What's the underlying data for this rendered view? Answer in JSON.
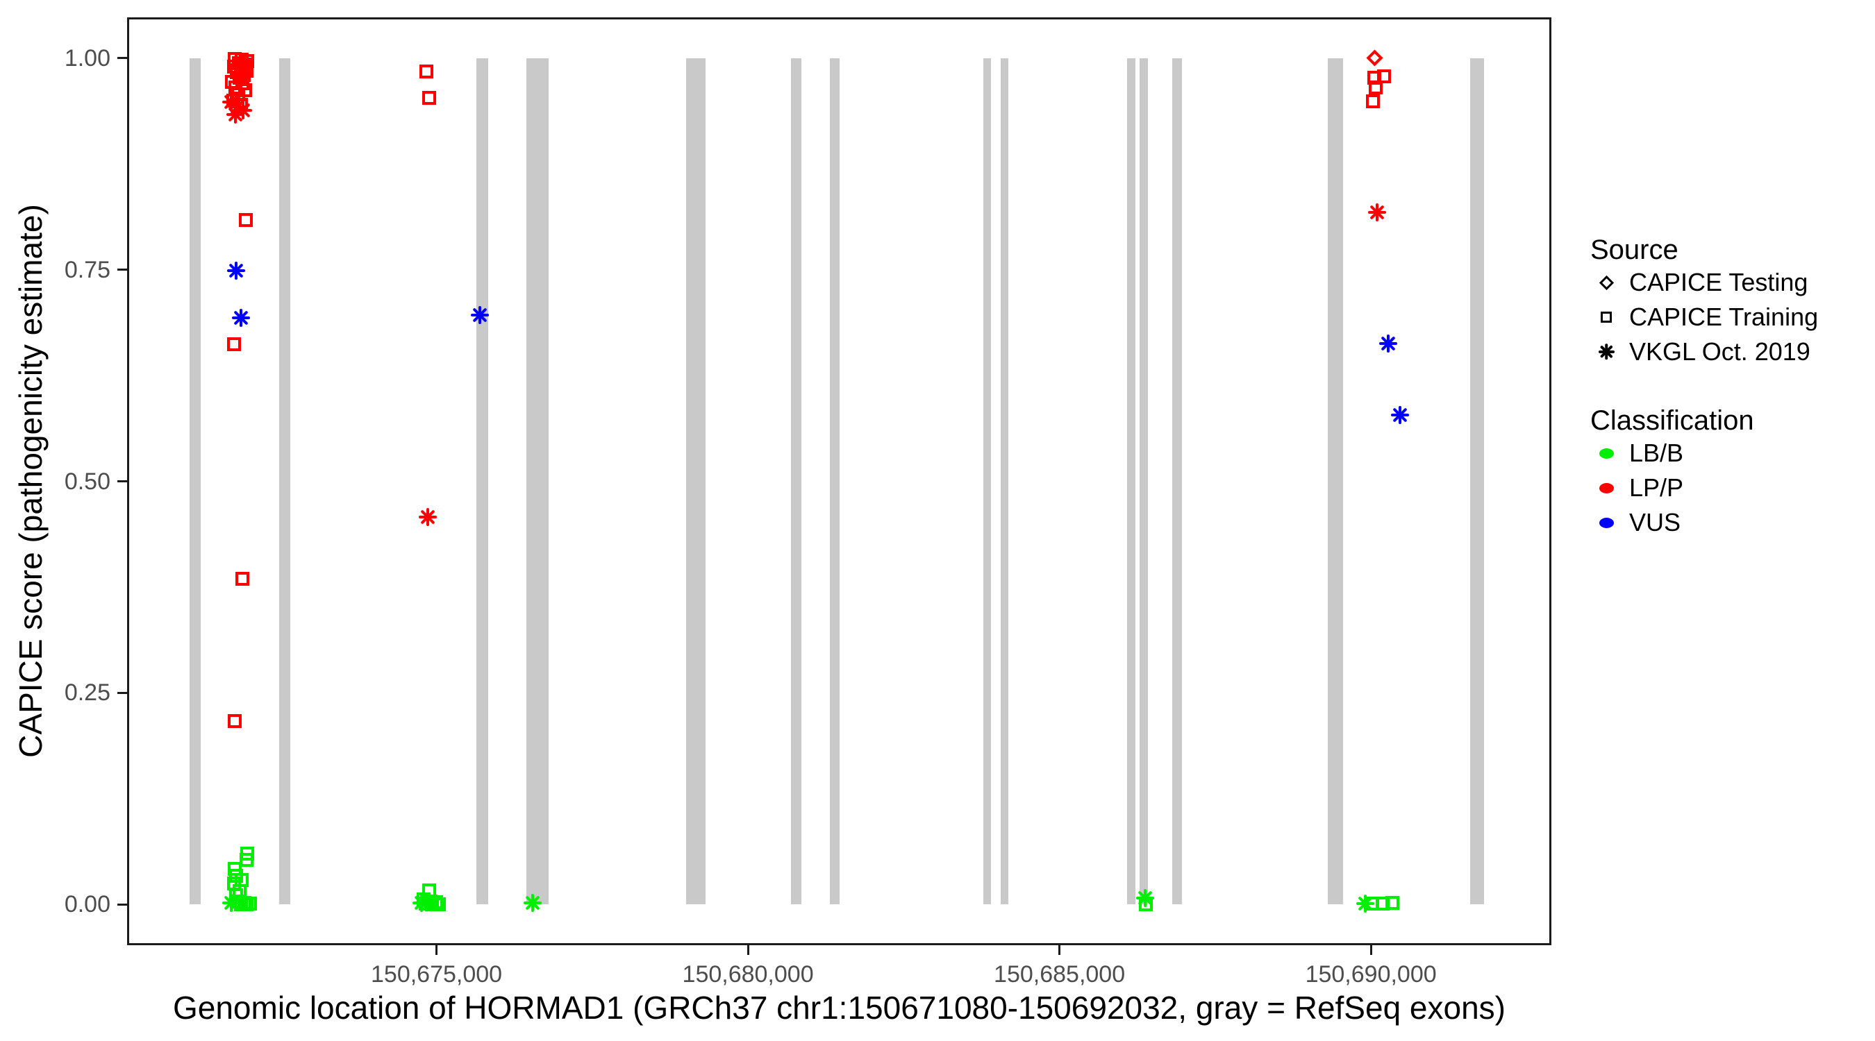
{
  "figure": {
    "background": "#ffffff",
    "panel_border_color": "#1b1b1b"
  },
  "chart_data": {
    "type": "scatter",
    "title": "",
    "xlabel": "Genomic location of HORMAD1 (GRCh37 chr1:150671080-150692032, gray = RefSeq exons)",
    "ylabel": "CAPICE score (pathogenicity estimate)",
    "x_range": [
      150670033,
      150692897
    ],
    "y_range": [
      -0.048,
      1.048
    ],
    "grid": false,
    "legend_position": "right",
    "x_ticks": [
      {
        "value": 150675000,
        "label": "150,675,000"
      },
      {
        "value": 150680000,
        "label": "150,680,000"
      },
      {
        "value": 150685000,
        "label": "150,685,000"
      },
      {
        "value": 150690000,
        "label": "150,690,000"
      }
    ],
    "y_ticks": [
      {
        "value": 0.0,
        "label": "0.00"
      },
      {
        "value": 0.25,
        "label": "0.25"
      },
      {
        "value": 0.5,
        "label": "0.50"
      },
      {
        "value": 0.75,
        "label": "0.75"
      },
      {
        "value": 1.0,
        "label": "1.00"
      }
    ],
    "exon_color": "#c9c9c9",
    "exons": [
      [
        150671036,
        150671214
      ],
      [
        150672474,
        150672652
      ],
      [
        150675641,
        150675830
      ],
      [
        150676443,
        150676800
      ],
      [
        150679007,
        150679319
      ],
      [
        150680690,
        150680857
      ],
      [
        150681314,
        150681470
      ],
      [
        150683778,
        150683900
      ],
      [
        150684056,
        150684179
      ],
      [
        150686085,
        150686219
      ],
      [
        150686286,
        150686419
      ],
      [
        150686810,
        150686966
      ],
      [
        150689306,
        150689552
      ],
      [
        150691592,
        150691815
      ]
    ],
    "legend": {
      "source": {
        "title": "Source",
        "items": [
          {
            "label": "CAPICE Testing",
            "marker": "diamond"
          },
          {
            "label": "CAPICE Training",
            "marker": "square"
          },
          {
            "label": "VKGL Oct. 2019",
            "marker": "asterisk"
          }
        ]
      },
      "classification": {
        "title": "Classification",
        "items": [
          {
            "label": "LB/B",
            "class_code": "B"
          },
          {
            "label": "LP/P",
            "class_code": "P"
          },
          {
            "label": "VUS",
            "class_code": "V"
          }
        ]
      }
    },
    "codes": {
      "sources": {
        "DT": "CAPICE Testing",
        "TR": "CAPICE Training",
        "VK": "VKGL Oct. 2019"
      },
      "classes": {
        "B": "LB/B",
        "P": "LP/P",
        "V": "VUS"
      }
    },
    "source_markers": {
      "DT": "diamond",
      "TR": "square",
      "VK": "asterisk"
    },
    "class_colors": {
      "B": "#00ee00",
      "P": "#ff0000",
      "V": "#0000ff"
    },
    "points_format": [
      "x_genomic",
      "capice_score",
      "source_code",
      "class_code"
    ],
    "points": [
      [
        150671762,
        0.999,
        "TR",
        "P"
      ],
      [
        150671873,
        0.998,
        "TR",
        "P"
      ],
      [
        150671962,
        0.996,
        "TR",
        "P"
      ],
      [
        150671829,
        0.994,
        "TR",
        "P"
      ],
      [
        150671918,
        0.992,
        "TR",
        "P"
      ],
      [
        150671751,
        0.99,
        "TR",
        "P"
      ],
      [
        150671862,
        0.988,
        "TR",
        "P"
      ],
      [
        150671951,
        0.985,
        "TR",
        "P"
      ],
      [
        150671796,
        0.983,
        "TR",
        "P"
      ],
      [
        150671907,
        0.98,
        "TR",
        "P"
      ],
      [
        150671840,
        0.977,
        "TR",
        "P"
      ],
      [
        150671718,
        0.972,
        "TR",
        "P"
      ],
      [
        150671885,
        0.97,
        "TR",
        "P"
      ],
      [
        150671773,
        0.965,
        "TR",
        "P"
      ],
      [
        150671929,
        0.962,
        "TR",
        "P"
      ],
      [
        150671818,
        0.957,
        "TR",
        "P"
      ],
      [
        150671740,
        0.95,
        "TR",
        "P"
      ],
      [
        150671866,
        0.945,
        "TR",
        "P"
      ],
      [
        150671706,
        0.948,
        "VK",
        "P"
      ],
      [
        150671807,
        0.942,
        "VK",
        "P"
      ],
      [
        150671896,
        0.938,
        "VK",
        "P"
      ],
      [
        150671773,
        0.933,
        "VK",
        "P"
      ],
      [
        150671940,
        0.809,
        "TR",
        "P"
      ],
      [
        150671784,
        0.749,
        "VK",
        "V"
      ],
      [
        150671862,
        0.693,
        "VK",
        "V"
      ],
      [
        150671751,
        0.662,
        "TR",
        "P"
      ],
      [
        150671885,
        0.385,
        "TR",
        "P"
      ],
      [
        150671762,
        0.217,
        "TR",
        "P"
      ],
      [
        150671962,
        0.06,
        "TR",
        "B"
      ],
      [
        150671951,
        0.053,
        "TR",
        "B"
      ],
      [
        150671762,
        0.042,
        "TR",
        "B"
      ],
      [
        150671784,
        0.034,
        "TR",
        "B"
      ],
      [
        150671873,
        0.029,
        "TR",
        "B"
      ],
      [
        150671751,
        0.025,
        "TR",
        "B"
      ],
      [
        150671840,
        0.016,
        "TR",
        "B"
      ],
      [
        150671784,
        0.011,
        "TR",
        "B"
      ],
      [
        150671818,
        0.004,
        "TR",
        "B"
      ],
      [
        150671918,
        0.002,
        "TR",
        "B"
      ],
      [
        150672007,
        0.001,
        "TR",
        "B"
      ],
      [
        150671862,
        0.0,
        "TR",
        "B"
      ],
      [
        150671951,
        0.0,
        "TR",
        "B"
      ],
      [
        150671706,
        0.002,
        "VK",
        "B"
      ],
      [
        150674839,
        0.984,
        "TR",
        "P"
      ],
      [
        150674883,
        0.953,
        "TR",
        "P"
      ],
      [
        150674861,
        0.458,
        "VK",
        "P"
      ],
      [
        150675697,
        0.696,
        "VK",
        "V"
      ],
      [
        150674883,
        0.017,
        "TR",
        "B"
      ],
      [
        150674794,
        0.006,
        "TR",
        "B"
      ],
      [
        150674905,
        0.004,
        "TR",
        "B"
      ],
      [
        150674994,
        0.003,
        "TR",
        "B"
      ],
      [
        150674827,
        0.001,
        "TR",
        "B"
      ],
      [
        150674928,
        0.0,
        "TR",
        "B"
      ],
      [
        150675039,
        0.0,
        "TR",
        "B"
      ],
      [
        150674761,
        0.002,
        "VK",
        "B"
      ],
      [
        150676544,
        0.002,
        "VK",
        "B"
      ],
      [
        150686375,
        0.008,
        "VK",
        "B"
      ],
      [
        150686386,
        0.0,
        "TR",
        "B"
      ],
      [
        150690065,
        1.0,
        "DT",
        "P"
      ],
      [
        150690054,
        0.977,
        "TR",
        "P"
      ],
      [
        150690210,
        0.978,
        "TR",
        "P"
      ],
      [
        150690076,
        0.965,
        "TR",
        "P"
      ],
      [
        150690032,
        0.949,
        "TR",
        "P"
      ],
      [
        150690098,
        0.818,
        "VK",
        "P"
      ],
      [
        150690276,
        0.663,
        "VK",
        "V"
      ],
      [
        150690466,
        0.578,
        "VK",
        "V"
      ],
      [
        150689909,
        0.001,
        "VK",
        "B"
      ],
      [
        150690021,
        0.001,
        "TR",
        "B"
      ],
      [
        150690188,
        0.001,
        "TR",
        "B"
      ],
      [
        150690343,
        0.002,
        "TR",
        "B"
      ]
    ]
  }
}
